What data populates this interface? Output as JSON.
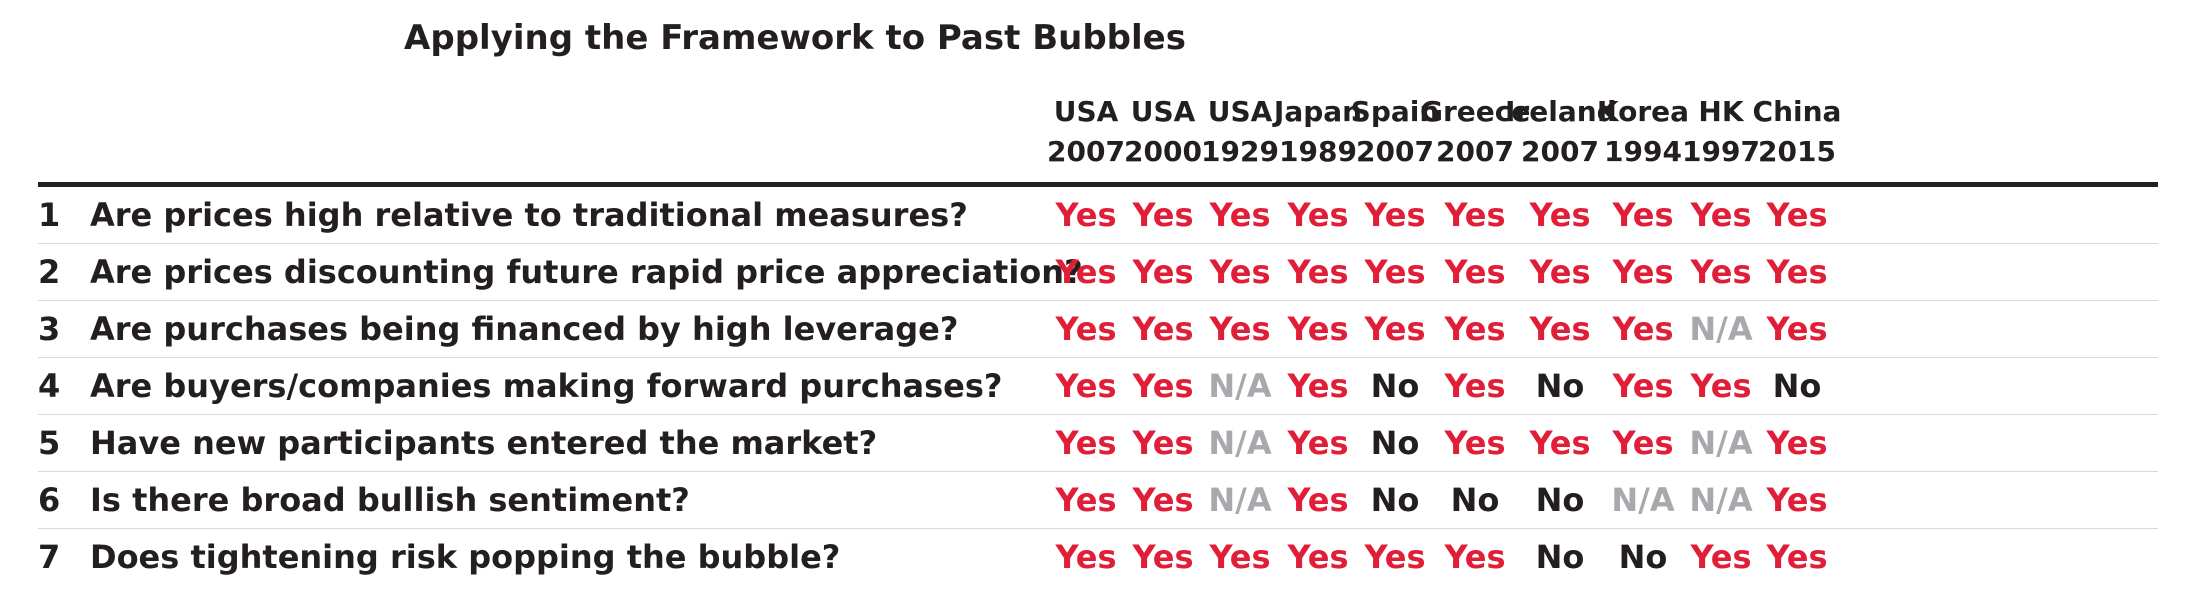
{
  "title": "Applying the Framework to Past Bubbles",
  "columns": [
    {
      "line1": "USA",
      "line2": "2007"
    },
    {
      "line1": "USA",
      "line2": "2000"
    },
    {
      "line1": "USA",
      "line2": "1929"
    },
    {
      "line1": "Japan",
      "line2": "1989"
    },
    {
      "line1": "Spain",
      "line2": "2007"
    },
    {
      "line1": "Greece",
      "line2": "2007"
    },
    {
      "line1": "Ireland",
      "line2": "2007"
    },
    {
      "line1": "Korea",
      "line2": "1994"
    },
    {
      "line1": "HK",
      "line2": "1997"
    },
    {
      "line1": "China",
      "line2": "2015"
    }
  ],
  "rows": [
    {
      "num": "1",
      "question": "Are prices high relative to traditional measures?",
      "values": [
        "Yes",
        "Yes",
        "Yes",
        "Yes",
        "Yes",
        "Yes",
        "Yes",
        "Yes",
        "Yes",
        "Yes"
      ]
    },
    {
      "num": "2",
      "question": "Are prices discounting future rapid price appreciation?",
      "values": [
        "Yes",
        "Yes",
        "Yes",
        "Yes",
        "Yes",
        "Yes",
        "Yes",
        "Yes",
        "Yes",
        "Yes"
      ]
    },
    {
      "num": "3",
      "question": "Are purchases being financed by high leverage?",
      "values": [
        "Yes",
        "Yes",
        "Yes",
        "Yes",
        "Yes",
        "Yes",
        "Yes",
        "Yes",
        "N/A",
        "Yes"
      ]
    },
    {
      "num": "4",
      "question": "Are buyers/companies making forward purchases?",
      "values": [
        "Yes",
        "Yes",
        "N/A",
        "Yes",
        "No",
        "Yes",
        "No",
        "Yes",
        "Yes",
        "No"
      ]
    },
    {
      "num": "5",
      "question": "Have new participants entered the market?",
      "values": [
        "Yes",
        "Yes",
        "N/A",
        "Yes",
        "No",
        "Yes",
        "Yes",
        "Yes",
        "N/A",
        "Yes"
      ]
    },
    {
      "num": "6",
      "question": "Is there broad bullish sentiment?",
      "values": [
        "Yes",
        "Yes",
        "N/A",
        "Yes",
        "No",
        "No",
        "No",
        "N/A",
        "N/A",
        "Yes"
      ]
    },
    {
      "num": "7",
      "question": "Does tightening risk popping the bubble?",
      "values": [
        "Yes",
        "Yes",
        "Yes",
        "Yes",
        "Yes",
        "Yes",
        "No",
        "No",
        "Yes",
        "Yes"
      ]
    }
  ],
  "colors": {
    "yes": "#e01e37",
    "no": "#231f20",
    "na": "#a7a9ac"
  }
}
